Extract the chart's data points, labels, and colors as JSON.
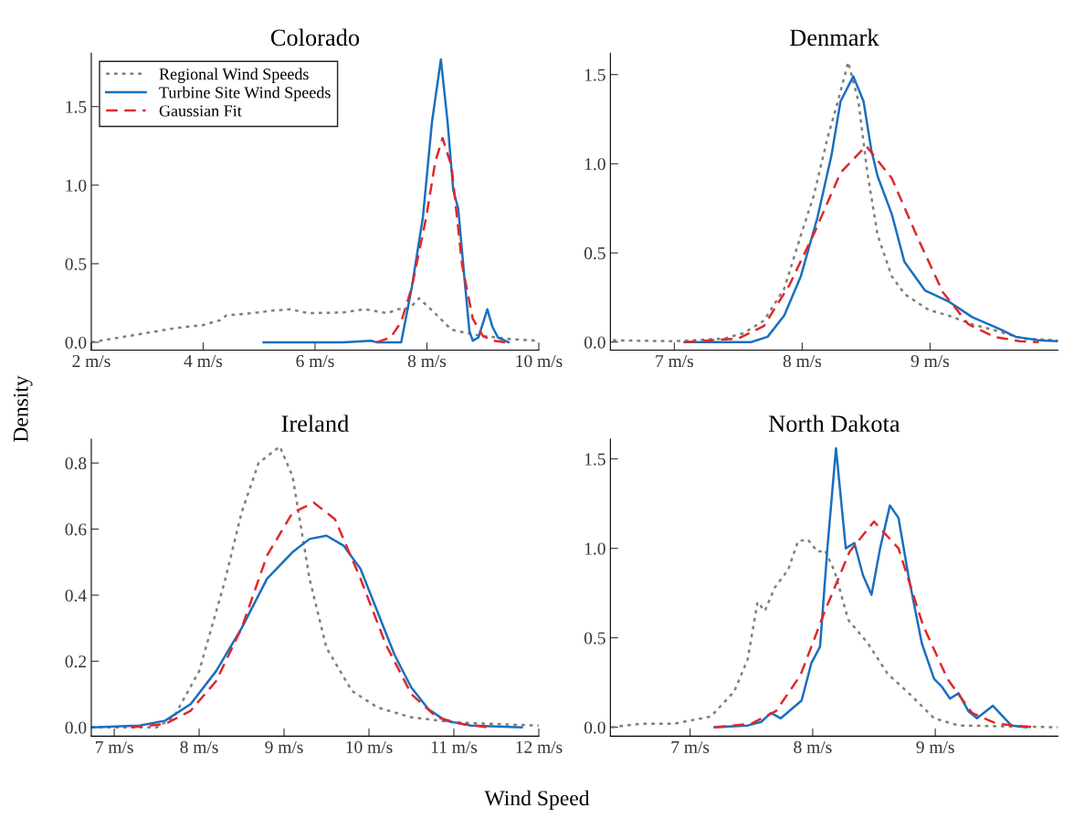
{
  "chart_data": [
    {
      "type": "line",
      "title": "Colorado",
      "ylabel": "Density",
      "xlabel": "Wind Speed",
      "legend": "top left",
      "grid": false,
      "marker": "none",
      "xlim": [
        2,
        10
      ],
      "ylim": [
        -0.05,
        1.84
      ],
      "xticks": [
        {
          "value": 2,
          "label": "2 m/s"
        },
        {
          "value": 4,
          "label": "4 m/s"
        },
        {
          "value": 6,
          "label": "6 m/s"
        },
        {
          "value": 8,
          "label": "8 m/s"
        },
        {
          "value": 10,
          "label": "10 m/s"
        }
      ],
      "yticks": [
        {
          "value": 0,
          "label": "0.0"
        },
        {
          "value": 0.5,
          "label": "0.5"
        },
        {
          "value": 1,
          "label": "1.0"
        },
        {
          "value": 1.5,
          "label": "1.5"
        }
      ],
      "series": [
        {
          "name": "Regional Wind Speeds",
          "color": "#7f7f7f",
          "line_style": "dotted",
          "x": [
            2,
            2.5,
            3,
            3.5,
            4,
            4.3,
            4.41,
            5,
            5.18,
            5.56,
            5.88,
            6.5,
            6.9,
            7.29,
            7.48,
            7.7,
            7.86,
            8.1,
            8.44,
            8.82,
            9,
            9.5,
            10
          ],
          "values": [
            0.0,
            0.03,
            0.06,
            0.09,
            0.11,
            0.14,
            0.17,
            0.19,
            0.2,
            0.21,
            0.185,
            0.19,
            0.21,
            0.185,
            0.21,
            0.22,
            0.28,
            0.2,
            0.08,
            0.05,
            0.04,
            0.02,
            0.01
          ]
        },
        {
          "name": "Turbine Site Wind Speeds",
          "color": "#1a6fc0",
          "line_style": "solid",
          "x": [
            5.08,
            5.5,
            6.0,
            6.5,
            7.0,
            7.1,
            7.54,
            7.73,
            7.93,
            8.09,
            8.25,
            8.37,
            8.47,
            8.56,
            8.66,
            8.76,
            8.82,
            8.92,
            9.08,
            9.17,
            9.27,
            9.46
          ],
          "values": [
            0.0,
            0.0,
            0.0,
            0.0,
            0.01,
            0.0,
            0.0,
            0.35,
            0.8,
            1.4,
            1.8,
            1.4,
            0.97,
            0.85,
            0.45,
            0.07,
            0.01,
            0.03,
            0.21,
            0.1,
            0.03,
            0.0
          ]
        },
        {
          "name": "Gaussian Fit",
          "color": "#e02828",
          "line_style": "dashed",
          "x": [
            7.1,
            7.35,
            7.54,
            7.73,
            7.99,
            8.15,
            8.28,
            8.44,
            8.63,
            8.82,
            9.0,
            9.2,
            9.4
          ],
          "values": [
            0.0,
            0.03,
            0.13,
            0.35,
            0.8,
            1.15,
            1.3,
            1.12,
            0.49,
            0.15,
            0.04,
            0.01,
            0.0
          ]
        }
      ]
    },
    {
      "type": "line",
      "title": "Denmark",
      "grid": false,
      "marker": "none",
      "xlim": [
        6.5,
        10
      ],
      "ylim": [
        -0.045,
        1.62
      ],
      "xticks": [
        {
          "value": 7,
          "label": "7 m/s"
        },
        {
          "value": 8,
          "label": "8 m/s"
        },
        {
          "value": 9,
          "label": "9 m/s"
        }
      ],
      "yticks": [
        {
          "value": 0,
          "label": "0.0"
        },
        {
          "value": 0.5,
          "label": "0.5"
        },
        {
          "value": 1,
          "label": "1.0"
        },
        {
          "value": 1.5,
          "label": "1.5"
        }
      ],
      "series": [
        {
          "color": "#7f7f7f",
          "line_style": "dotted",
          "x": [
            6.52,
            7.0,
            7.39,
            7.54,
            7.7,
            7.86,
            7.99,
            8.09,
            8.2,
            8.28,
            8.36,
            8.44,
            8.51,
            8.59,
            8.7,
            8.8,
            8.99,
            9.14,
            9.33,
            9.54,
            9.72,
            10
          ],
          "values": [
            0.01,
            0.005,
            0.02,
            0.05,
            0.12,
            0.3,
            0.6,
            0.82,
            1.15,
            1.35,
            1.57,
            1.35,
            0.95,
            0.6,
            0.37,
            0.27,
            0.18,
            0.15,
            0.1,
            0.06,
            0.02,
            0.01
          ]
        },
        {
          "color": "#1a6fc0",
          "line_style": "solid",
          "x": [
            7.08,
            7.6,
            7.73,
            7.86,
            7.99,
            8.12,
            8.23,
            8.3,
            8.4,
            8.48,
            8.54,
            8.59,
            8.7,
            8.8,
            8.96,
            9.14,
            9.33,
            9.54,
            9.67,
            9.85,
            10
          ],
          "values": [
            0.0,
            0.0,
            0.03,
            0.15,
            0.37,
            0.7,
            1.05,
            1.35,
            1.49,
            1.35,
            1.08,
            0.93,
            0.72,
            0.45,
            0.29,
            0.23,
            0.14,
            0.075,
            0.03,
            0.01,
            0.005
          ]
        },
        {
          "color": "#e02828",
          "line_style": "dashed",
          "x": [
            7.08,
            7.5,
            7.7,
            7.9,
            8.1,
            8.3,
            8.5,
            8.7,
            8.9,
            9.1,
            9.3,
            9.5,
            9.7,
            9.85
          ],
          "values": [
            0.0,
            0.02,
            0.09,
            0.32,
            0.62,
            0.95,
            1.1,
            0.92,
            0.59,
            0.28,
            0.1,
            0.03,
            0.005,
            0.0
          ]
        }
      ]
    },
    {
      "type": "line",
      "title": "Ireland",
      "grid": false,
      "marker": "none",
      "xlim": [
        6.73,
        12
      ],
      "ylim": [
        -0.027,
        0.872
      ],
      "xticks": [
        {
          "value": 7,
          "label": "7 m/s"
        },
        {
          "value": 8,
          "label": "8 m/s"
        },
        {
          "value": 9,
          "label": "9 m/s"
        },
        {
          "value": 10,
          "label": "10 m/s"
        },
        {
          "value": 11,
          "label": "11 m/s"
        },
        {
          "value": 12,
          "label": "12 m/s"
        }
      ],
      "yticks": [
        {
          "value": 0,
          "label": "0.0"
        },
        {
          "value": 0.2,
          "label": "0.2"
        },
        {
          "value": 0.4,
          "label": "0.4"
        },
        {
          "value": 0.6,
          "label": "0.6"
        },
        {
          "value": 0.8,
          "label": "0.8"
        }
      ],
      "series": [
        {
          "color": "#7f7f7f",
          "line_style": "dotted",
          "x": [
            6.73,
            7.5,
            7.7,
            8.0,
            8.3,
            8.5,
            8.7,
            8.95,
            9.1,
            9.3,
            9.5,
            9.8,
            10.1,
            10.5,
            11,
            12
          ],
          "values": [
            0.0,
            0.0,
            0.03,
            0.17,
            0.44,
            0.65,
            0.8,
            0.85,
            0.76,
            0.45,
            0.24,
            0.11,
            0.06,
            0.03,
            0.015,
            0.005
          ]
        },
        {
          "color": "#1a6fc0",
          "line_style": "solid",
          "x": [
            6.73,
            7.3,
            7.6,
            7.9,
            8.2,
            8.5,
            8.8,
            9.1,
            9.3,
            9.5,
            9.7,
            9.9,
            10.1,
            10.3,
            10.5,
            10.7,
            10.9,
            11.2,
            11.8
          ],
          "values": [
            0.0,
            0.005,
            0.02,
            0.07,
            0.17,
            0.3,
            0.45,
            0.53,
            0.57,
            0.58,
            0.55,
            0.48,
            0.35,
            0.22,
            0.12,
            0.055,
            0.02,
            0.005,
            0.0
          ]
        },
        {
          "color": "#e02828",
          "line_style": "dashed",
          "x": [
            7.2,
            7.6,
            7.9,
            8.2,
            8.5,
            8.8,
            9.1,
            9.35,
            9.6,
            9.9,
            10.2,
            10.5,
            10.8,
            11.1,
            11.4
          ],
          "values": [
            0.0,
            0.01,
            0.05,
            0.14,
            0.3,
            0.52,
            0.65,
            0.68,
            0.63,
            0.45,
            0.25,
            0.1,
            0.03,
            0.01,
            0.0
          ]
        }
      ]
    },
    {
      "type": "line",
      "title": "North Dakota",
      "grid": false,
      "marker": "none",
      "xlim": [
        6.35,
        10
      ],
      "ylim": [
        -0.05,
        1.61
      ],
      "xticks": [
        {
          "value": 7,
          "label": "7 m/s"
        },
        {
          "value": 8,
          "label": "8 m/s"
        },
        {
          "value": 9,
          "label": "9 m/s"
        }
      ],
      "yticks": [
        {
          "value": 0,
          "label": "0.0"
        },
        {
          "value": 0.5,
          "label": "0.5"
        },
        {
          "value": 1,
          "label": "1.0"
        },
        {
          "value": 1.5,
          "label": "1.5"
        }
      ],
      "series": [
        {
          "color": "#7f7f7f",
          "line_style": "dotted",
          "x": [
            6.36,
            6.6,
            6.87,
            7.17,
            7.36,
            7.47,
            7.55,
            7.61,
            7.69,
            7.8,
            7.88,
            7.96,
            8.04,
            8.1,
            8.18,
            8.29,
            8.45,
            8.61,
            8.8,
            8.99,
            9.19,
            10
          ],
          "values": [
            0.0,
            0.02,
            0.02,
            0.06,
            0.2,
            0.38,
            0.7,
            0.65,
            0.78,
            0.88,
            1.04,
            1.05,
            0.98,
            0.99,
            0.87,
            0.6,
            0.47,
            0.3,
            0.18,
            0.05,
            0.01,
            0.0
          ]
        },
        {
          "color": "#1a6fc0",
          "line_style": "solid",
          "x": [
            7.2,
            7.47,
            7.58,
            7.66,
            7.74,
            7.91,
            7.99,
            8.06,
            8.12,
            8.19,
            8.27,
            8.34,
            8.41,
            8.48,
            8.55,
            8.63,
            8.7,
            8.78,
            8.89,
            8.99,
            9.05,
            9.12,
            9.19,
            9.27,
            9.34,
            9.47,
            9.62,
            9.74
          ],
          "values": [
            0.0,
            0.01,
            0.03,
            0.08,
            0.05,
            0.15,
            0.36,
            0.45,
            1.0,
            1.56,
            1.0,
            1.03,
            0.85,
            0.74,
            1.0,
            1.24,
            1.17,
            0.85,
            0.47,
            0.27,
            0.23,
            0.16,
            0.19,
            0.09,
            0.05,
            0.12,
            0.01,
            0.0
          ]
        },
        {
          "color": "#e02828",
          "line_style": "dashed",
          "x": [
            7.2,
            7.5,
            7.7,
            7.9,
            8.1,
            8.3,
            8.5,
            8.7,
            8.9,
            9.1,
            9.3,
            9.5,
            9.8
          ],
          "values": [
            0.0,
            0.02,
            0.09,
            0.29,
            0.65,
            0.98,
            1.15,
            1.0,
            0.57,
            0.27,
            0.08,
            0.02,
            0.0
          ]
        }
      ]
    }
  ]
}
